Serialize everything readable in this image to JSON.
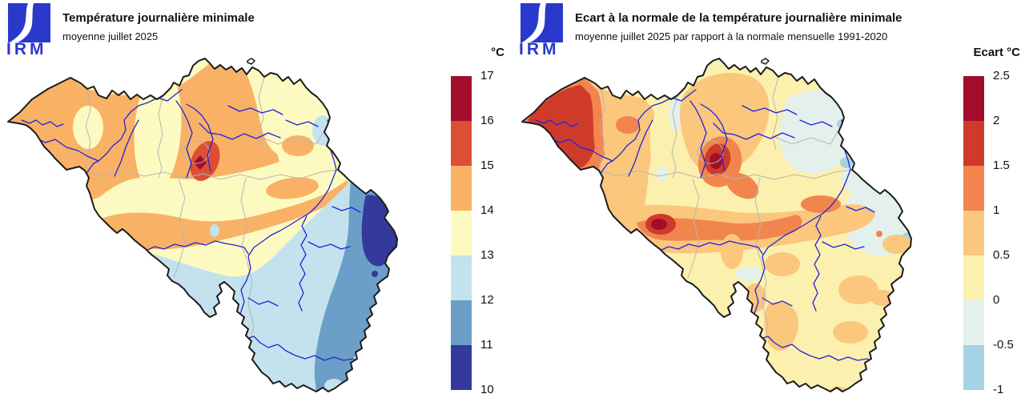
{
  "left_panel": {
    "logo_text": "IRM",
    "title": "Température journalière minimale",
    "subtitle": "moyenne juillet 2025",
    "scale": {
      "unit": "°C",
      "ticks": [
        "17",
        "16",
        "15",
        "14",
        "13",
        "12",
        "11",
        "10"
      ],
      "colors": [
        "#a30d2b",
        "#dc4f34",
        "#f9b166",
        "#fdfac1",
        "#c3e2ee",
        "#6b9fc8",
        "#333a9c"
      ]
    }
  },
  "right_panel": {
    "logo_text": "IRM",
    "title": "Ecart à la normale de la température journalière minimale",
    "subtitle": "moyenne juillet 2025 par rapport à la normale mensuelle 1991-2020",
    "scale": {
      "unit": "Ecart °C",
      "ticks": [
        "2.5",
        "2",
        "1.5",
        "1",
        "0.5",
        "0",
        "-0.5",
        "-1"
      ],
      "colors": [
        "#a30d2b",
        "#cf3a2b",
        "#f2854e",
        "#fac77d",
        "#fcf0ae",
        "#e4f0ec",
        "#a8d2e5"
      ]
    }
  },
  "map": {
    "region": "Belgique",
    "border_color": "#1c1c1c",
    "river_color": "#2323d6",
    "province_border_color": "#b5b5b5",
    "logo_color": "#2939cb"
  }
}
